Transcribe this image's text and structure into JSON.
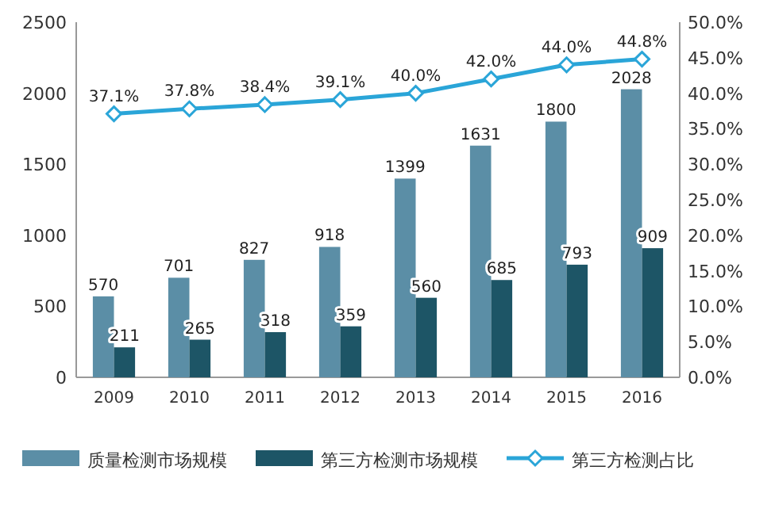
{
  "chart_data": {
    "type": "bar",
    "categories": [
      "2009",
      "2010",
      "2011",
      "2012",
      "2013",
      "2014",
      "2015",
      "2016"
    ],
    "series": [
      {
        "name": "质量检测市场规模",
        "color": "#5b8ea6",
        "values": [
          570,
          701,
          827,
          918,
          1399,
          1631,
          1800,
          2028
        ]
      },
      {
        "name": "第三方检测市场规模",
        "color": "#1d5566",
        "values": [
          211,
          265,
          318,
          359,
          560,
          685,
          793,
          909
        ]
      },
      {
        "name": "第三方检测占比",
        "color": "#2aa5d8",
        "type": "line",
        "axis": "y2",
        "marker": "diamond",
        "values": [
          37.1,
          37.8,
          38.4,
          39.1,
          40.0,
          42.0,
          44.0,
          44.8
        ],
        "value_labels": [
          "37.1%",
          "37.8%",
          "38.4%",
          "39.1%",
          "40.0%",
          "42.0%",
          "44.0%",
          "44.8%"
        ]
      }
    ],
    "ylim": [
      0,
      2500
    ],
    "yticks": [
      0,
      500,
      1000,
      1500,
      2000,
      2500
    ],
    "y2lim": [
      0,
      50
    ],
    "y2ticks": [
      {
        "value": 0,
        "label": "0.0%"
      },
      {
        "value": 5,
        "label": "5.0%"
      },
      {
        "value": 10,
        "label": "10.0%"
      },
      {
        "value": 15,
        "label": "15.0%"
      },
      {
        "value": 20,
        "label": "20.0%"
      },
      {
        "value": 25,
        "label": "25.0%"
      },
      {
        "value": 30,
        "label": "30.0%"
      },
      {
        "value": 35,
        "label": "35.0%"
      },
      {
        "value": 40,
        "label": "40.0%"
      },
      {
        "value": 45,
        "label": "45.0%"
      },
      {
        "value": 50,
        "label": "50.0%"
      }
    ],
    "data_labels": true,
    "legend": "bottom"
  }
}
